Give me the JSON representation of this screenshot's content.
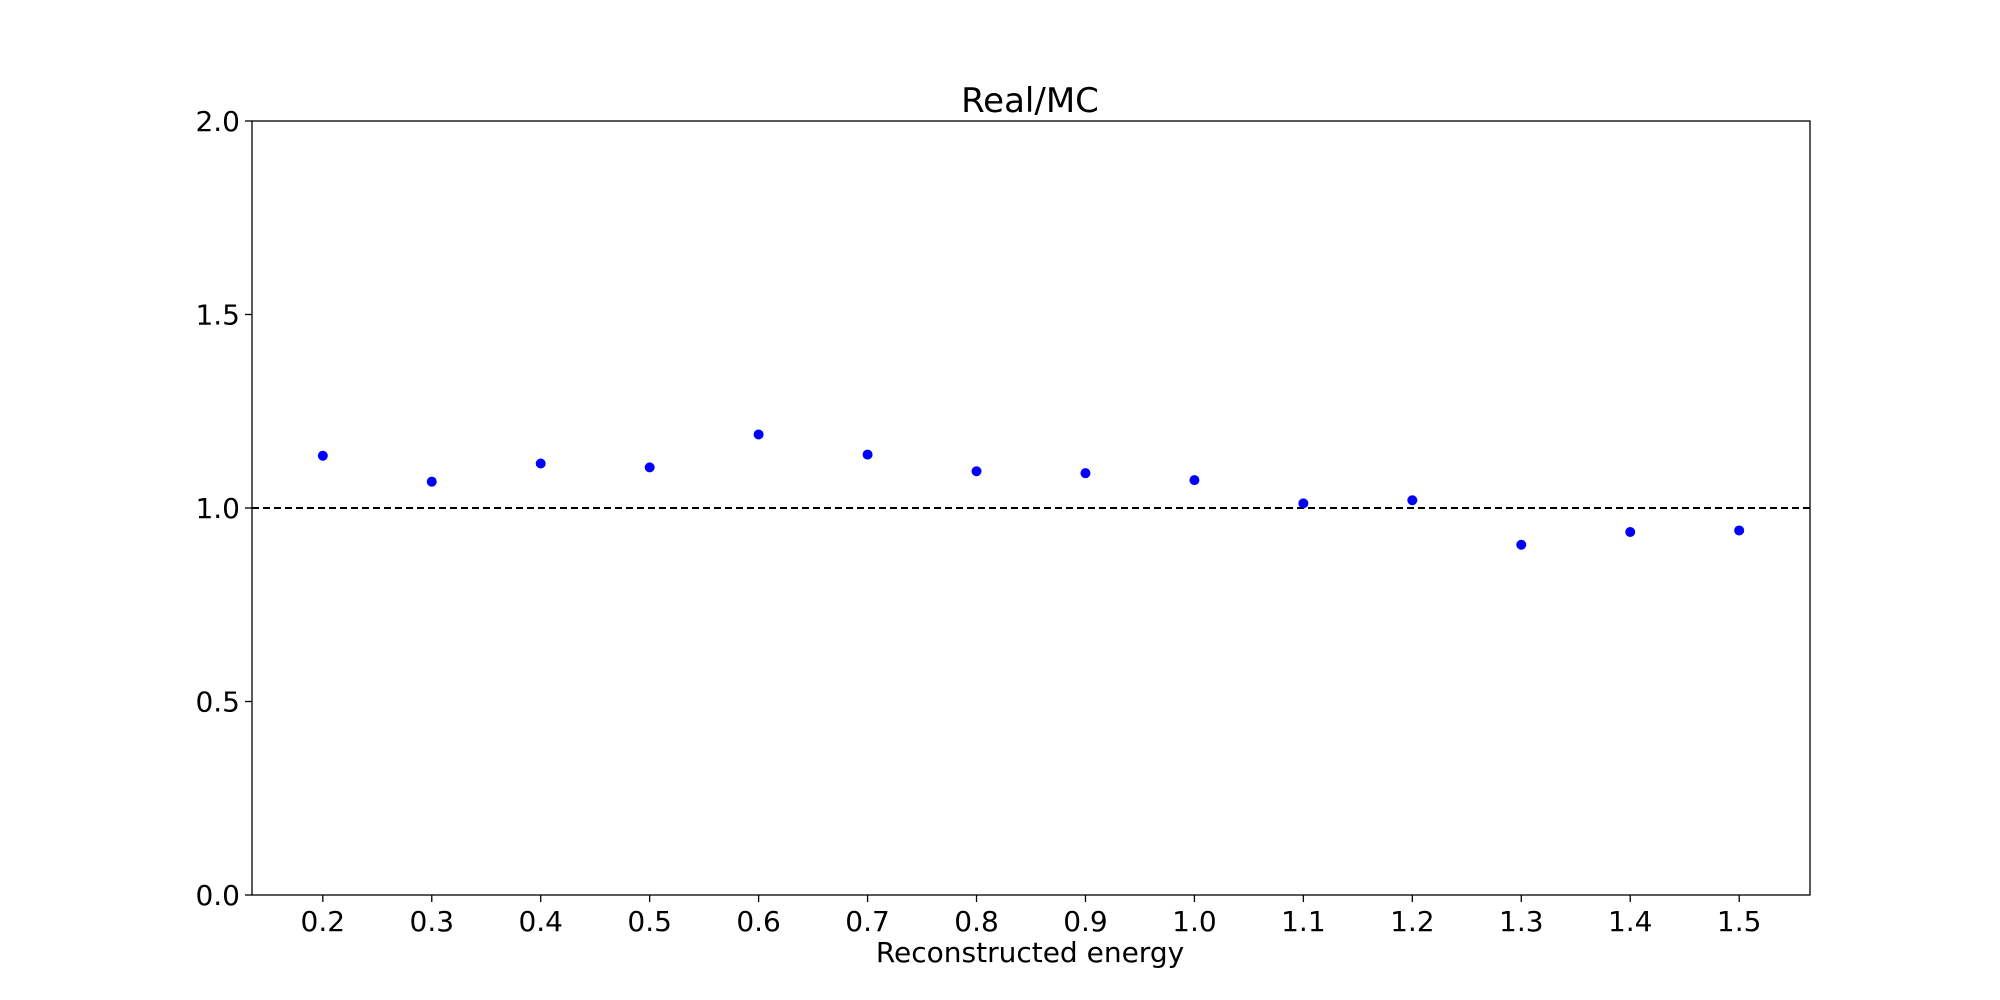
{
  "chart_data": {
    "type": "scatter",
    "title": "Real/MC",
    "xlabel": "Reconstructed energy",
    "ylabel": "",
    "x": [
      0.2,
      0.3,
      0.4,
      0.5,
      0.6,
      0.7,
      0.8,
      0.9,
      1.0,
      1.1,
      1.2,
      1.3,
      1.4,
      1.5
    ],
    "x_tick_labels": [
      "0.2",
      "0.3",
      "0.4",
      "0.5",
      "0.6",
      "0.7",
      "0.8",
      "0.9",
      "1.0",
      "1.1",
      "1.2",
      "1.3",
      "1.4",
      "1.5"
    ],
    "series": [
      {
        "values": [
          1.135,
          1.068,
          1.115,
          1.105,
          1.19,
          1.138,
          1.095,
          1.09,
          1.072,
          1.012,
          1.02,
          0.905,
          0.938,
          0.942
        ],
        "color": "#0000ff"
      }
    ],
    "xlim": [
      0.135,
      1.565
    ],
    "ylim": [
      0.0,
      2.0
    ],
    "y_ticks": [
      0.0,
      0.5,
      1.0,
      1.5,
      2.0
    ],
    "y_tick_labels": [
      "0.0",
      "0.5",
      "1.0",
      "1.5",
      "2.0"
    ],
    "reference_line": {
      "y": 1.0,
      "style": "dashed",
      "color": "#000000"
    },
    "grid": false,
    "legend": "none"
  }
}
